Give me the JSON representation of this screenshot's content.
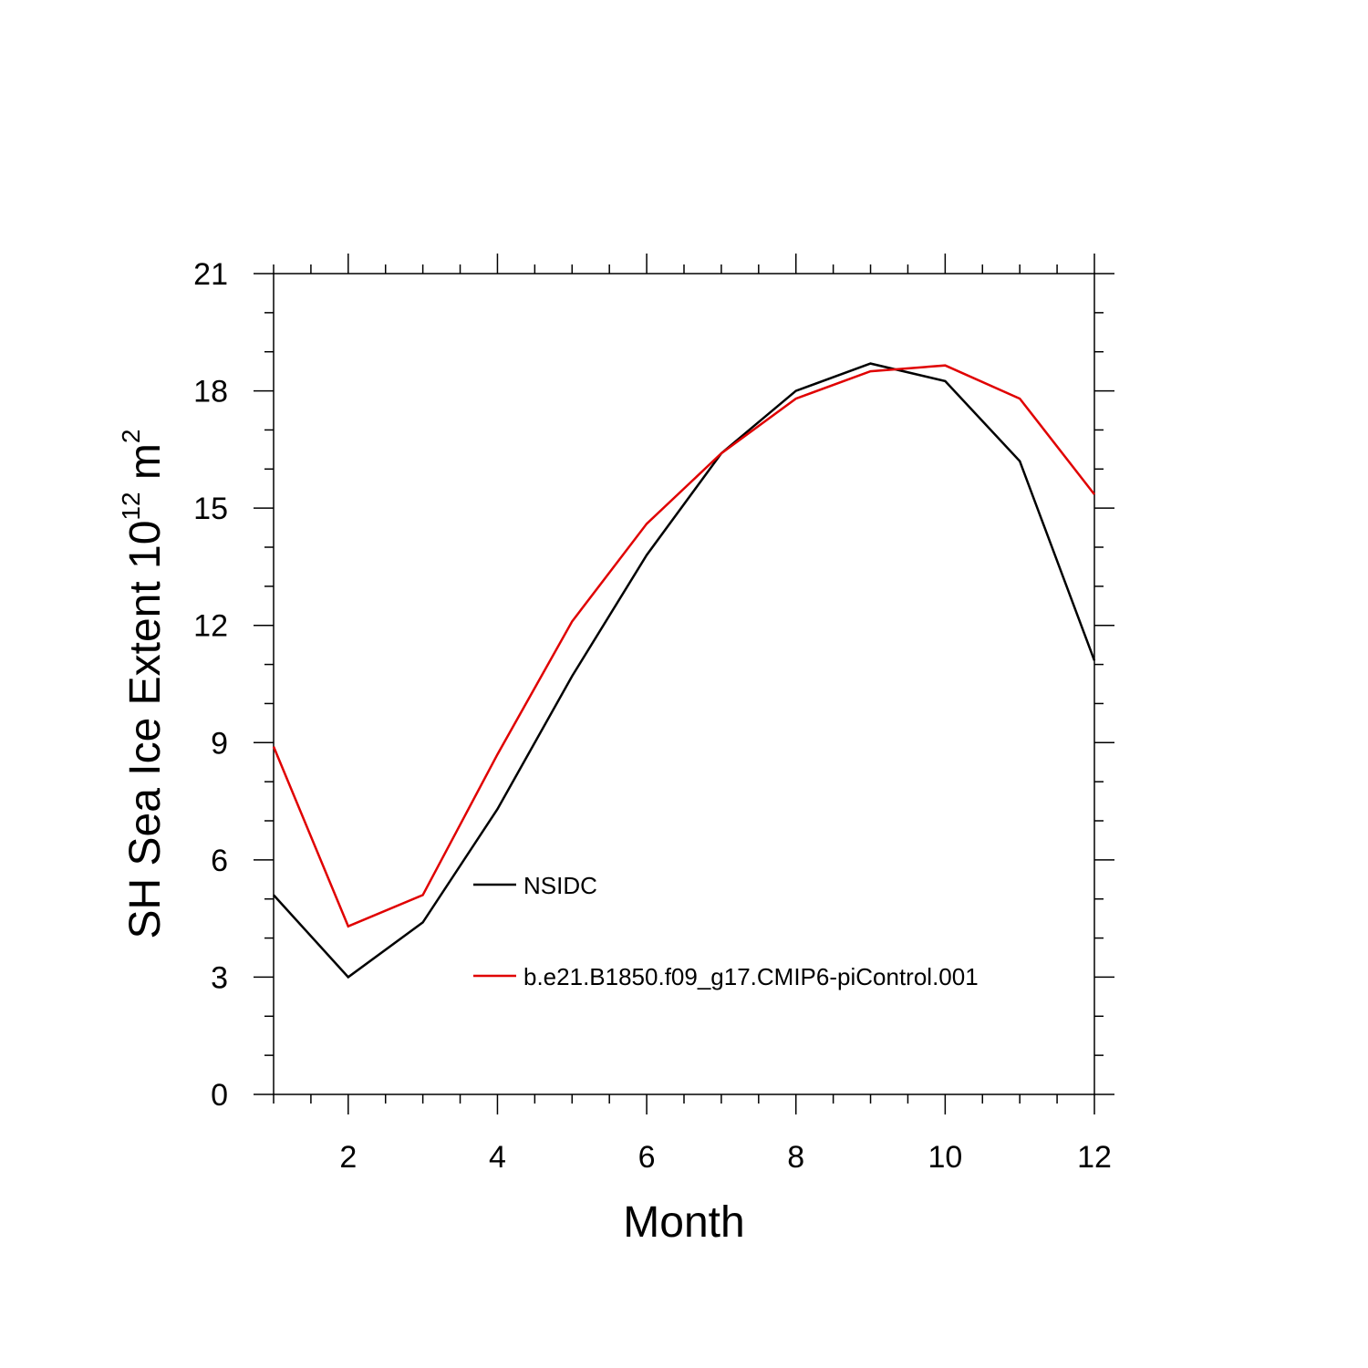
{
  "chart_data": {
    "type": "line",
    "title": "",
    "xlabel": "Month",
    "ylabel": {
      "text": "SH Sea Ice Extent 10",
      "exponent": "12",
      "unit": "m",
      "unit_exponent": "2"
    },
    "xlim": [
      1,
      12
    ],
    "ylim": [
      0,
      21
    ],
    "x_ticks": [
      2,
      4,
      6,
      8,
      10,
      12
    ],
    "y_ticks": [
      0,
      3,
      6,
      9,
      12,
      15,
      18,
      21
    ],
    "x": [
      1,
      2,
      3,
      4,
      5,
      6,
      7,
      8,
      9,
      10,
      11,
      12
    ],
    "series": [
      {
        "name": "NSIDC",
        "color": "#000000",
        "values": [
          5.1,
          3.0,
          4.4,
          7.3,
          10.7,
          13.8,
          16.4,
          18.0,
          18.7,
          18.25,
          16.2,
          11.1
        ]
      },
      {
        "name": "b.e21.B1850.f09_g17.CMIP6-piControl.001",
        "color": "#e00000",
        "values": [
          8.9,
          4.3,
          5.1,
          8.7,
          12.1,
          14.6,
          16.4,
          17.8,
          18.5,
          18.65,
          17.8,
          15.35
        ]
      }
    ],
    "grid": false,
    "legend_position": "lower-center"
  }
}
